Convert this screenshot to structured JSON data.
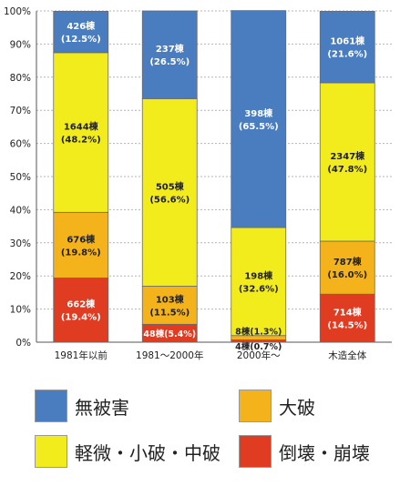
{
  "chart_data": {
    "type": "bar",
    "stacked": true,
    "normalized": true,
    "title": "",
    "xlabel": "",
    "ylabel": "",
    "ylim": [
      0,
      100
    ],
    "yticks": [
      "0%",
      "10%",
      "20%",
      "30%",
      "40%",
      "50%",
      "60%",
      "70%",
      "80%",
      "90%",
      "100%"
    ],
    "grid": true,
    "legend_position": "bottom",
    "categories": [
      "1981年以前",
      "1981～2000年",
      "2000年～",
      "木造全体"
    ],
    "series": [
      {
        "name": "倒壊・崩壊",
        "color": "#e03c22",
        "values": [
          19.4,
          5.4,
          0.7,
          14.5
        ],
        "labels": [
          "662棟",
          "48棟",
          "4棟",
          "714棟"
        ],
        "pct_labels": [
          "(19.4%)",
          "(5.4%)",
          "(0.7%)",
          "(14.5%)"
        ]
      },
      {
        "name": "大破",
        "color": "#f4b21b",
        "values": [
          19.8,
          11.5,
          1.3,
          16.0
        ],
        "labels": [
          "676棟",
          "103棟",
          "8棟",
          "787棟"
        ],
        "pct_labels": [
          "(19.8%)",
          "(11.5%)",
          "(1.3%)",
          "(16.0%)"
        ]
      },
      {
        "name": "軽微・小破・中破",
        "color": "#f2ec1c",
        "values": [
          48.2,
          56.6,
          32.6,
          47.8
        ],
        "labels": [
          "1644棟",
          "505棟",
          "198棟",
          "2347棟"
        ],
        "pct_labels": [
          "(48.2%)",
          "(56.6%)",
          "(32.6%)",
          "(47.8%)"
        ]
      },
      {
        "name": "無被害",
        "color": "#4a7dc0",
        "values": [
          12.5,
          26.5,
          65.5,
          21.6
        ],
        "labels": [
          "426棟",
          "237棟",
          "398棟",
          "1061棟"
        ],
        "pct_labels": [
          "(12.5%)",
          "(26.5%)",
          "(65.5%)",
          "(21.6%)"
        ]
      }
    ]
  },
  "legend": [
    {
      "label": "無被害",
      "color": "#4a7dc0"
    },
    {
      "label": "大破",
      "color": "#f4b21b"
    },
    {
      "label": "軽微・小破・中破",
      "color": "#f2ec1c"
    },
    {
      "label": "倒壊・崩壊",
      "color": "#e03c22"
    }
  ]
}
